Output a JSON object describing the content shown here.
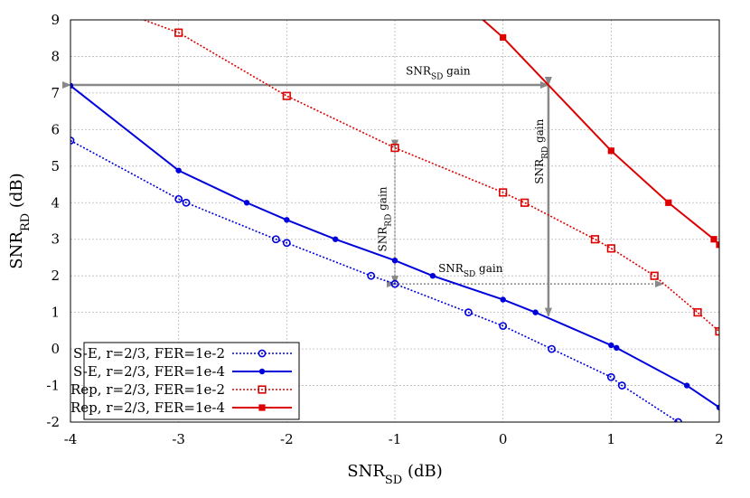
{
  "chart_data": {
    "type": "line",
    "xlabel": "SNR",
    "xlabel_sub": "SD",
    "xlabel_unit": " (dB)",
    "ylabel": "SNR",
    "ylabel_sub": "RD",
    "ylabel_unit": " (dB)",
    "xlim": [
      -4,
      2
    ],
    "ylim": [
      -2,
      9
    ],
    "xticks": [
      -4,
      -3,
      -2,
      -1,
      0,
      1,
      2
    ],
    "yticks": [
      -2,
      -1,
      0,
      1,
      2,
      3,
      4,
      5,
      6,
      7,
      8,
      9
    ],
    "grid": true,
    "legend_position": "bottom-left",
    "series": [
      {
        "name": "S-E, r=2/3, FER=1e-2",
        "color": "#0000dd",
        "line_style": "dotted",
        "marker": "open-circle",
        "points": [
          [
            -4,
            5.7
          ],
          [
            -3,
            4.1
          ],
          [
            -2.93,
            4.0
          ],
          [
            -2.1,
            3.0
          ],
          [
            -2,
            2.9
          ],
          [
            -1.22,
            2.0
          ],
          [
            -1,
            1.78
          ],
          [
            -0.32,
            1.0
          ],
          [
            0,
            0.63
          ],
          [
            0.45,
            0.0
          ],
          [
            1,
            -0.77
          ],
          [
            1.1,
            -1.0
          ],
          [
            1.62,
            -2.0
          ]
        ]
      },
      {
        "name": "S-E, r=2/3, FER=1e-4",
        "color": "#0000dd",
        "line_style": "solid",
        "marker": "filled-circle",
        "points": [
          [
            -4,
            7.2
          ],
          [
            -3,
            4.88
          ],
          [
            -2.37,
            4.0
          ],
          [
            -2,
            3.53
          ],
          [
            -1.55,
            3.0
          ],
          [
            -1,
            2.42
          ],
          [
            -0.65,
            2.0
          ],
          [
            0,
            1.35
          ],
          [
            0.3,
            1.0
          ],
          [
            1,
            0.1
          ],
          [
            1.05,
            0.03
          ],
          [
            1.7,
            -1.0
          ],
          [
            2,
            -1.6
          ]
        ]
      },
      {
        "name": "Rep, r=2/3, FER=1e-2",
        "color": "#dd0000",
        "line_style": "dotted",
        "marker": "open-square",
        "points": [
          [
            -3.6,
            9.3
          ],
          [
            -3,
            8.65
          ],
          [
            -2,
            6.92
          ],
          [
            -1,
            5.5
          ],
          [
            0,
            4.28
          ],
          [
            0.2,
            4.0
          ],
          [
            0.85,
            3.0
          ],
          [
            1,
            2.75
          ],
          [
            1.4,
            2.0
          ],
          [
            1.8,
            1.0
          ],
          [
            2,
            0.48
          ]
        ]
      },
      {
        "name": "Rep, r=2/3, FER=1e-4",
        "color": "#dd0000",
        "line_style": "solid",
        "marker": "filled-square",
        "points": [
          [
            -0.3,
            9.3
          ],
          [
            0,
            8.52
          ],
          [
            1,
            5.42
          ],
          [
            1.53,
            4.0
          ],
          [
            1.95,
            3.0
          ],
          [
            2,
            2.85
          ]
        ]
      }
    ],
    "annotations": [
      {
        "text": "SNR",
        "sub": "SD",
        "suffix": " gain",
        "orientation": "horizontal",
        "at": [
          -0.6,
          7.5
        ],
        "arrow_from": [
          -4,
          7.22
        ],
        "arrow_to": [
          0.42,
          7.22
        ],
        "style": "solid"
      },
      {
        "text": "SNR",
        "sub": "RD",
        "suffix": " gain",
        "orientation": "vertical",
        "at": [
          0.37,
          5.4
        ],
        "arrow_from": [
          0.42,
          7.22
        ],
        "arrow_to": [
          0.42,
          0.9
        ],
        "style": "solid"
      },
      {
        "text": "SNR",
        "sub": "RD",
        "suffix": " gain",
        "orientation": "vertical",
        "at": [
          -1.08,
          3.55
        ],
        "arrow_from": [
          -1,
          5.5
        ],
        "arrow_to": [
          -1,
          1.78
        ],
        "style": "dotted"
      },
      {
        "text": "SNR",
        "sub": "SD",
        "suffix": " gain",
        "orientation": "horizontal",
        "at": [
          -0.3,
          2.1
        ],
        "arrow_from": [
          -1,
          1.78
        ],
        "arrow_to": [
          1.48,
          1.78
        ],
        "style": "dotted"
      }
    ]
  }
}
